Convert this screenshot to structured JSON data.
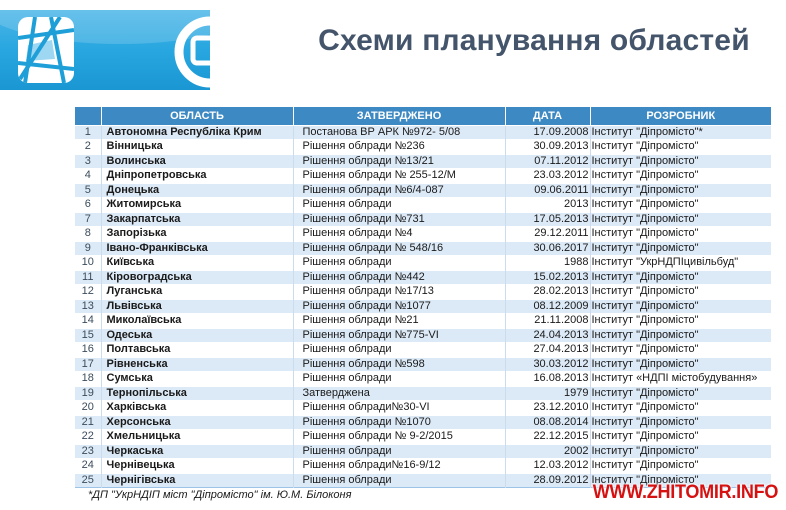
{
  "title": "Схеми планування областей",
  "logo": {
    "map_icon": "abstract-city-map",
    "ring_icon": "circular-emblem-clipped"
  },
  "table": {
    "headers": [
      "",
      "ОБЛАСТЬ",
      "ЗАТВЕРДЖЕНО",
      "ДАТА",
      "РОЗРОБНИК"
    ],
    "rows": [
      {
        "num": "1",
        "oblast": "Автономна Республіка Крим",
        "approved": "Постанова ВР АРК №972- 5/08",
        "date": "17.09.2008",
        "developer": "Інститут \"Діпромісто\"*"
      },
      {
        "num": "2",
        "oblast": "Вінницька",
        "approved": "Рішення облради №236",
        "date": "30.09.2013",
        "developer": "Інститут \"Діпромісто\""
      },
      {
        "num": "3",
        "oblast": "Волинська",
        "approved": "Рішення облради №13/21",
        "date": "07.11.2012",
        "developer": "Інститут \"Діпромісто\""
      },
      {
        "num": "4",
        "oblast": "Дніпропетровська",
        "approved": "Рішення облради № 255-12/М",
        "date": "23.03.2012",
        "developer": "Інститут \"Діпромісто\""
      },
      {
        "num": "5",
        "oblast": "Донецька",
        "approved": "Рішення облради №6/4-087",
        "date": "09.06.2011",
        "developer": "Інститут \"Діпромісто\""
      },
      {
        "num": "6",
        "oblast": "Житомирська",
        "approved": "Рішення облради",
        "date": "2013",
        "developer": "Інститут \"Діпромісто\""
      },
      {
        "num": "7",
        "oblast": "Закарпатська",
        "approved": "Рішення облради №731",
        "date": "17.05.2013",
        "developer": "Інститут \"Діпромісто\""
      },
      {
        "num": "8",
        "oblast": "Запорізька",
        "approved": "Рішення облради №4",
        "date": "29.12.2011",
        "developer": "Інститут \"Діпромісто\""
      },
      {
        "num": "9",
        "oblast": "Івано-Франківська",
        "approved": "Рішення облради № 548/16",
        "date": "30.06.2017",
        "developer": "Інститут \"Діпромісто\""
      },
      {
        "num": "10",
        "oblast": "Київська",
        "approved": "Рішення облради",
        "date": "1988",
        "developer": "Інститут  \"УкрНДПІцивільбуд\""
      },
      {
        "num": "11",
        "oblast": "Кіровоградська",
        "approved": "Рішення облради №442",
        "date": "15.02.2013",
        "developer": "Інститут \"Діпромісто\""
      },
      {
        "num": "12",
        "oblast": "Луганська",
        "approved": "Рішення облради №17/13",
        "date": "28.02.2013",
        "developer": "Інститут \"Діпромісто\""
      },
      {
        "num": "13",
        "oblast": "Львівська",
        "approved": "Рішення облради №1077",
        "date": "08.12.2009",
        "developer": "Інститут \"Діпромісто\""
      },
      {
        "num": "14",
        "oblast": "Миколаївська",
        "approved": "Рішення облради №21",
        "date": "21.11.2008",
        "developer": "Інститут \"Діпромісто\""
      },
      {
        "num": "15",
        "oblast": "Одеська",
        "approved": "Рішення облради №775-VI",
        "date": "24.04.2013",
        "developer": "Інститут \"Діпромісто\""
      },
      {
        "num": "16",
        "oblast": "Полтавська",
        "approved": "Рішення облради",
        "date": "27.04.2013",
        "developer": "Інститут \"Діпромісто\""
      },
      {
        "num": "17",
        "oblast": "Рівненська",
        "approved": "Рішення облради №598",
        "date": "30.03.2012",
        "developer": "Інститут \"Діпромісто\""
      },
      {
        "num": "18",
        "oblast": "Сумська",
        "approved": "Рішення облради",
        "date": "16.08.2013",
        "developer": "Інститут «НДПІ містобудування»"
      },
      {
        "num": "19",
        "oblast": "Тернопільська",
        "approved": "Затверджена",
        "date": "1979",
        "developer": "Інститут \"Діпромісто\""
      },
      {
        "num": "20",
        "oblast": "Харківська",
        "approved": "Рішення облради№30-VI",
        "date": "23.12.2010",
        "developer": "Інститут \"Діпромісто\""
      },
      {
        "num": "21",
        "oblast": "Херсонська",
        "approved": "Рішення облради №1070",
        "date": "08.08.2014",
        "developer": "Інститут \"Діпромісто\""
      },
      {
        "num": "22",
        "oblast": "Хмельницька",
        "approved": "Рішення облради № 9-2/2015",
        "date": "22.12.2015",
        "developer": "Інститут \"Діпромісто\""
      },
      {
        "num": "23",
        "oblast": "Черкаська",
        "approved": "Рішення облради",
        "date": "2002",
        "developer": "Інститут \"Діпромісто\""
      },
      {
        "num": "24",
        "oblast": "Чернівецька",
        "approved": "Рішення облради№16-9/12",
        "date": "12.03.2012",
        "developer": "Інститут \"Діпромісто\""
      },
      {
        "num": "25",
        "oblast": "Чернігівська",
        "approved": "Рішення облради",
        "date": "28.09.2012",
        "developer": "Інститут \"Діпромісто\""
      }
    ]
  },
  "footnote": "*ДП \"УкрНДІП міст  \"Діпромісто\" ім. Ю.М. Білоконя",
  "watermark": "WWW.ZHITOMIR.INFO",
  "colors": {
    "banner_blue": "#29a7e0",
    "header_blue": "#3d89c3",
    "row_alt_blue": "#dce9f6",
    "title_color": "#44546a",
    "watermark_red": "#d61111"
  }
}
